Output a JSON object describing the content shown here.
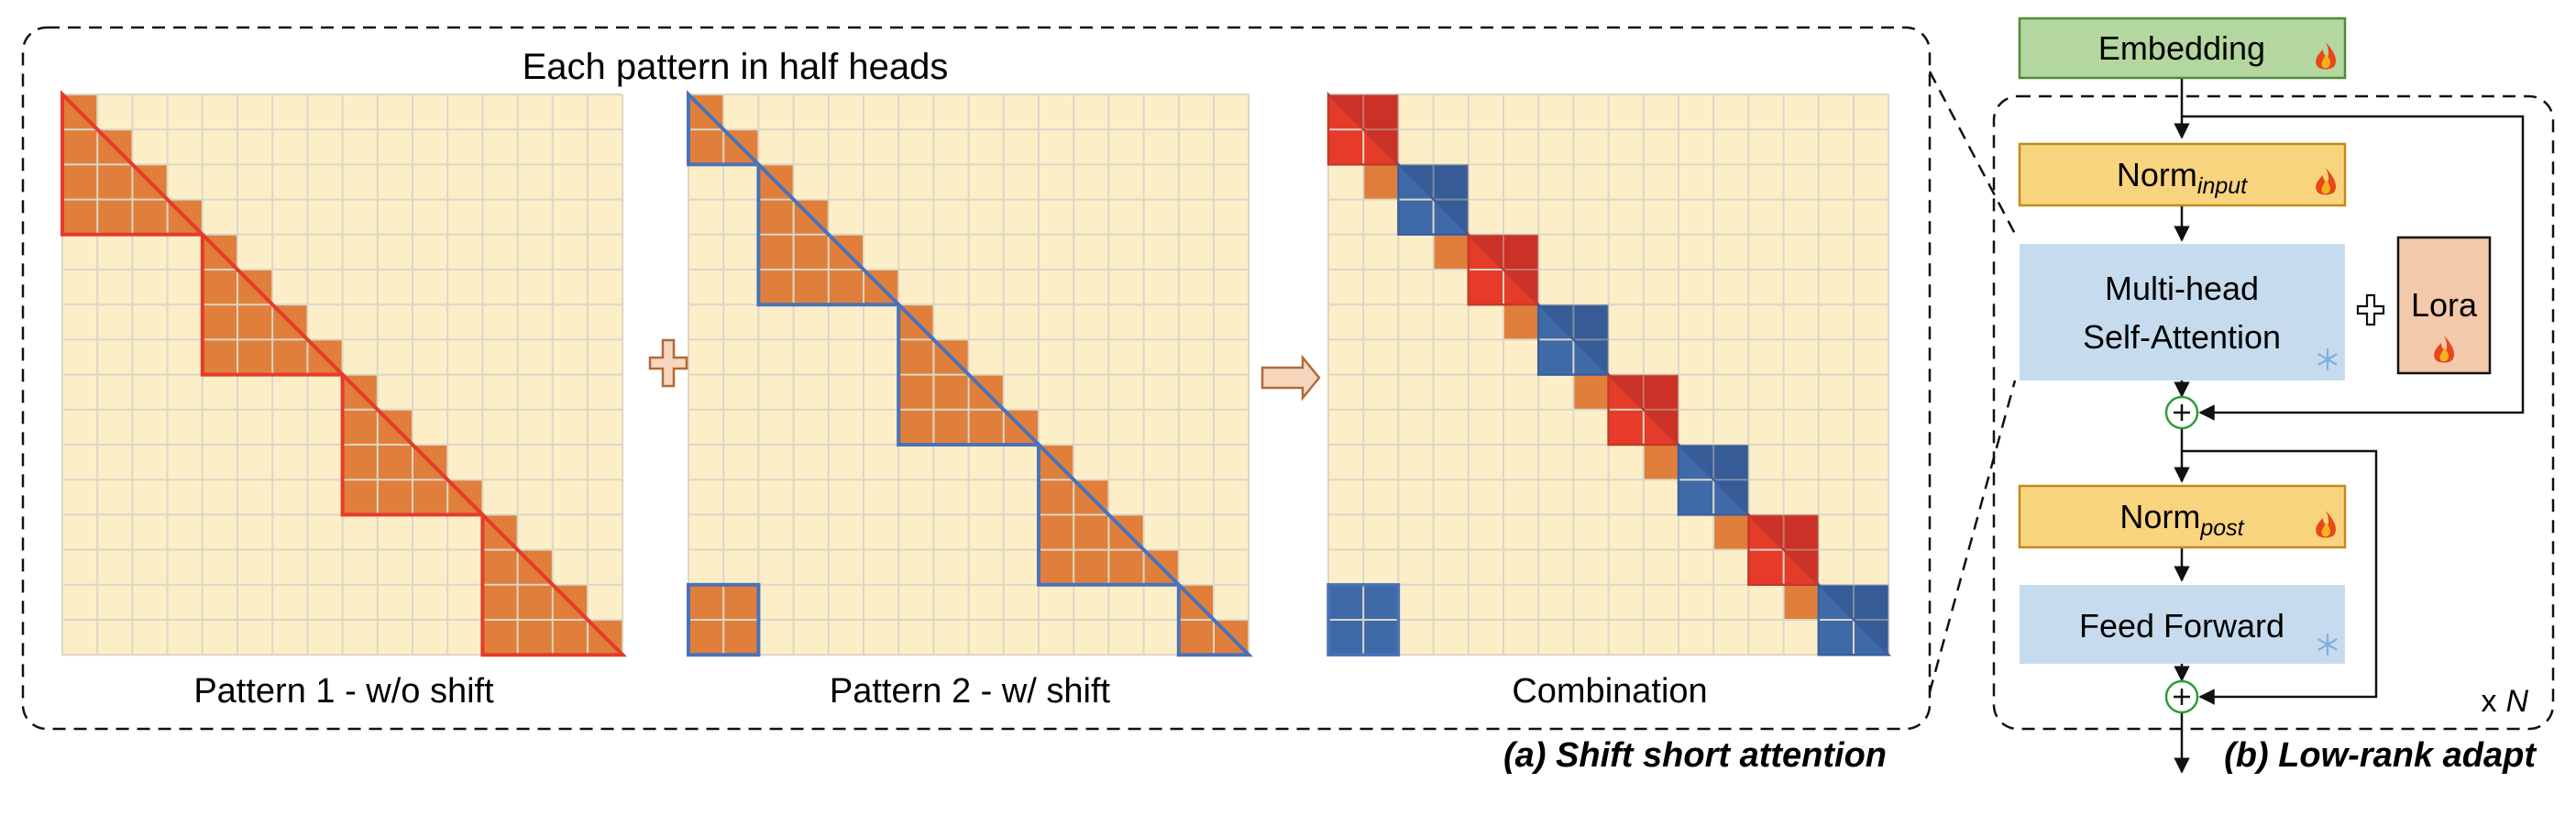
{
  "panel_a": {
    "header": "Each pattern in half heads",
    "caption": "(a) Shift short attention",
    "pattern1_label": "Pattern 1 - w/o shift",
    "pattern2_label": "Pattern 2 - w/ shift",
    "combination_label": "Combination",
    "grid_size": 16,
    "group_size": 4
  },
  "panel_b": {
    "caption": "(b) Low-rank adapt",
    "embedding": "Embedding",
    "norm_input_base": "Norm",
    "norm_input_sub": "input",
    "mhsa_line1": "Multi-head",
    "mhsa_line2": "Self-Attention",
    "lora": "Lora",
    "norm_post_base": "Norm",
    "norm_post_sub": "post",
    "feed_forward": "Feed Forward",
    "repeat_prefix": "x",
    "repeat_var": "N"
  },
  "colors": {
    "grid_bg": "#fcefc8",
    "grid_line": "#dcd6c6",
    "orange": "#e07f3b",
    "red_outline": "#e63a2a",
    "blue_outline": "#4a72b8",
    "red_fill": "#e63a2a",
    "blue_fill": "#3f6aa8",
    "green_box": "#b4d79f",
    "yellow_box": "#f8d47f",
    "blue_box": "#c6dcee",
    "lora_box": "#f2c9aa"
  },
  "icons": {
    "trainable": "fire-icon",
    "frozen": "snowflake-icon",
    "combine": "plus-icon",
    "arrow": "right-arrow-icon",
    "residual_add": "circle-plus-icon"
  }
}
